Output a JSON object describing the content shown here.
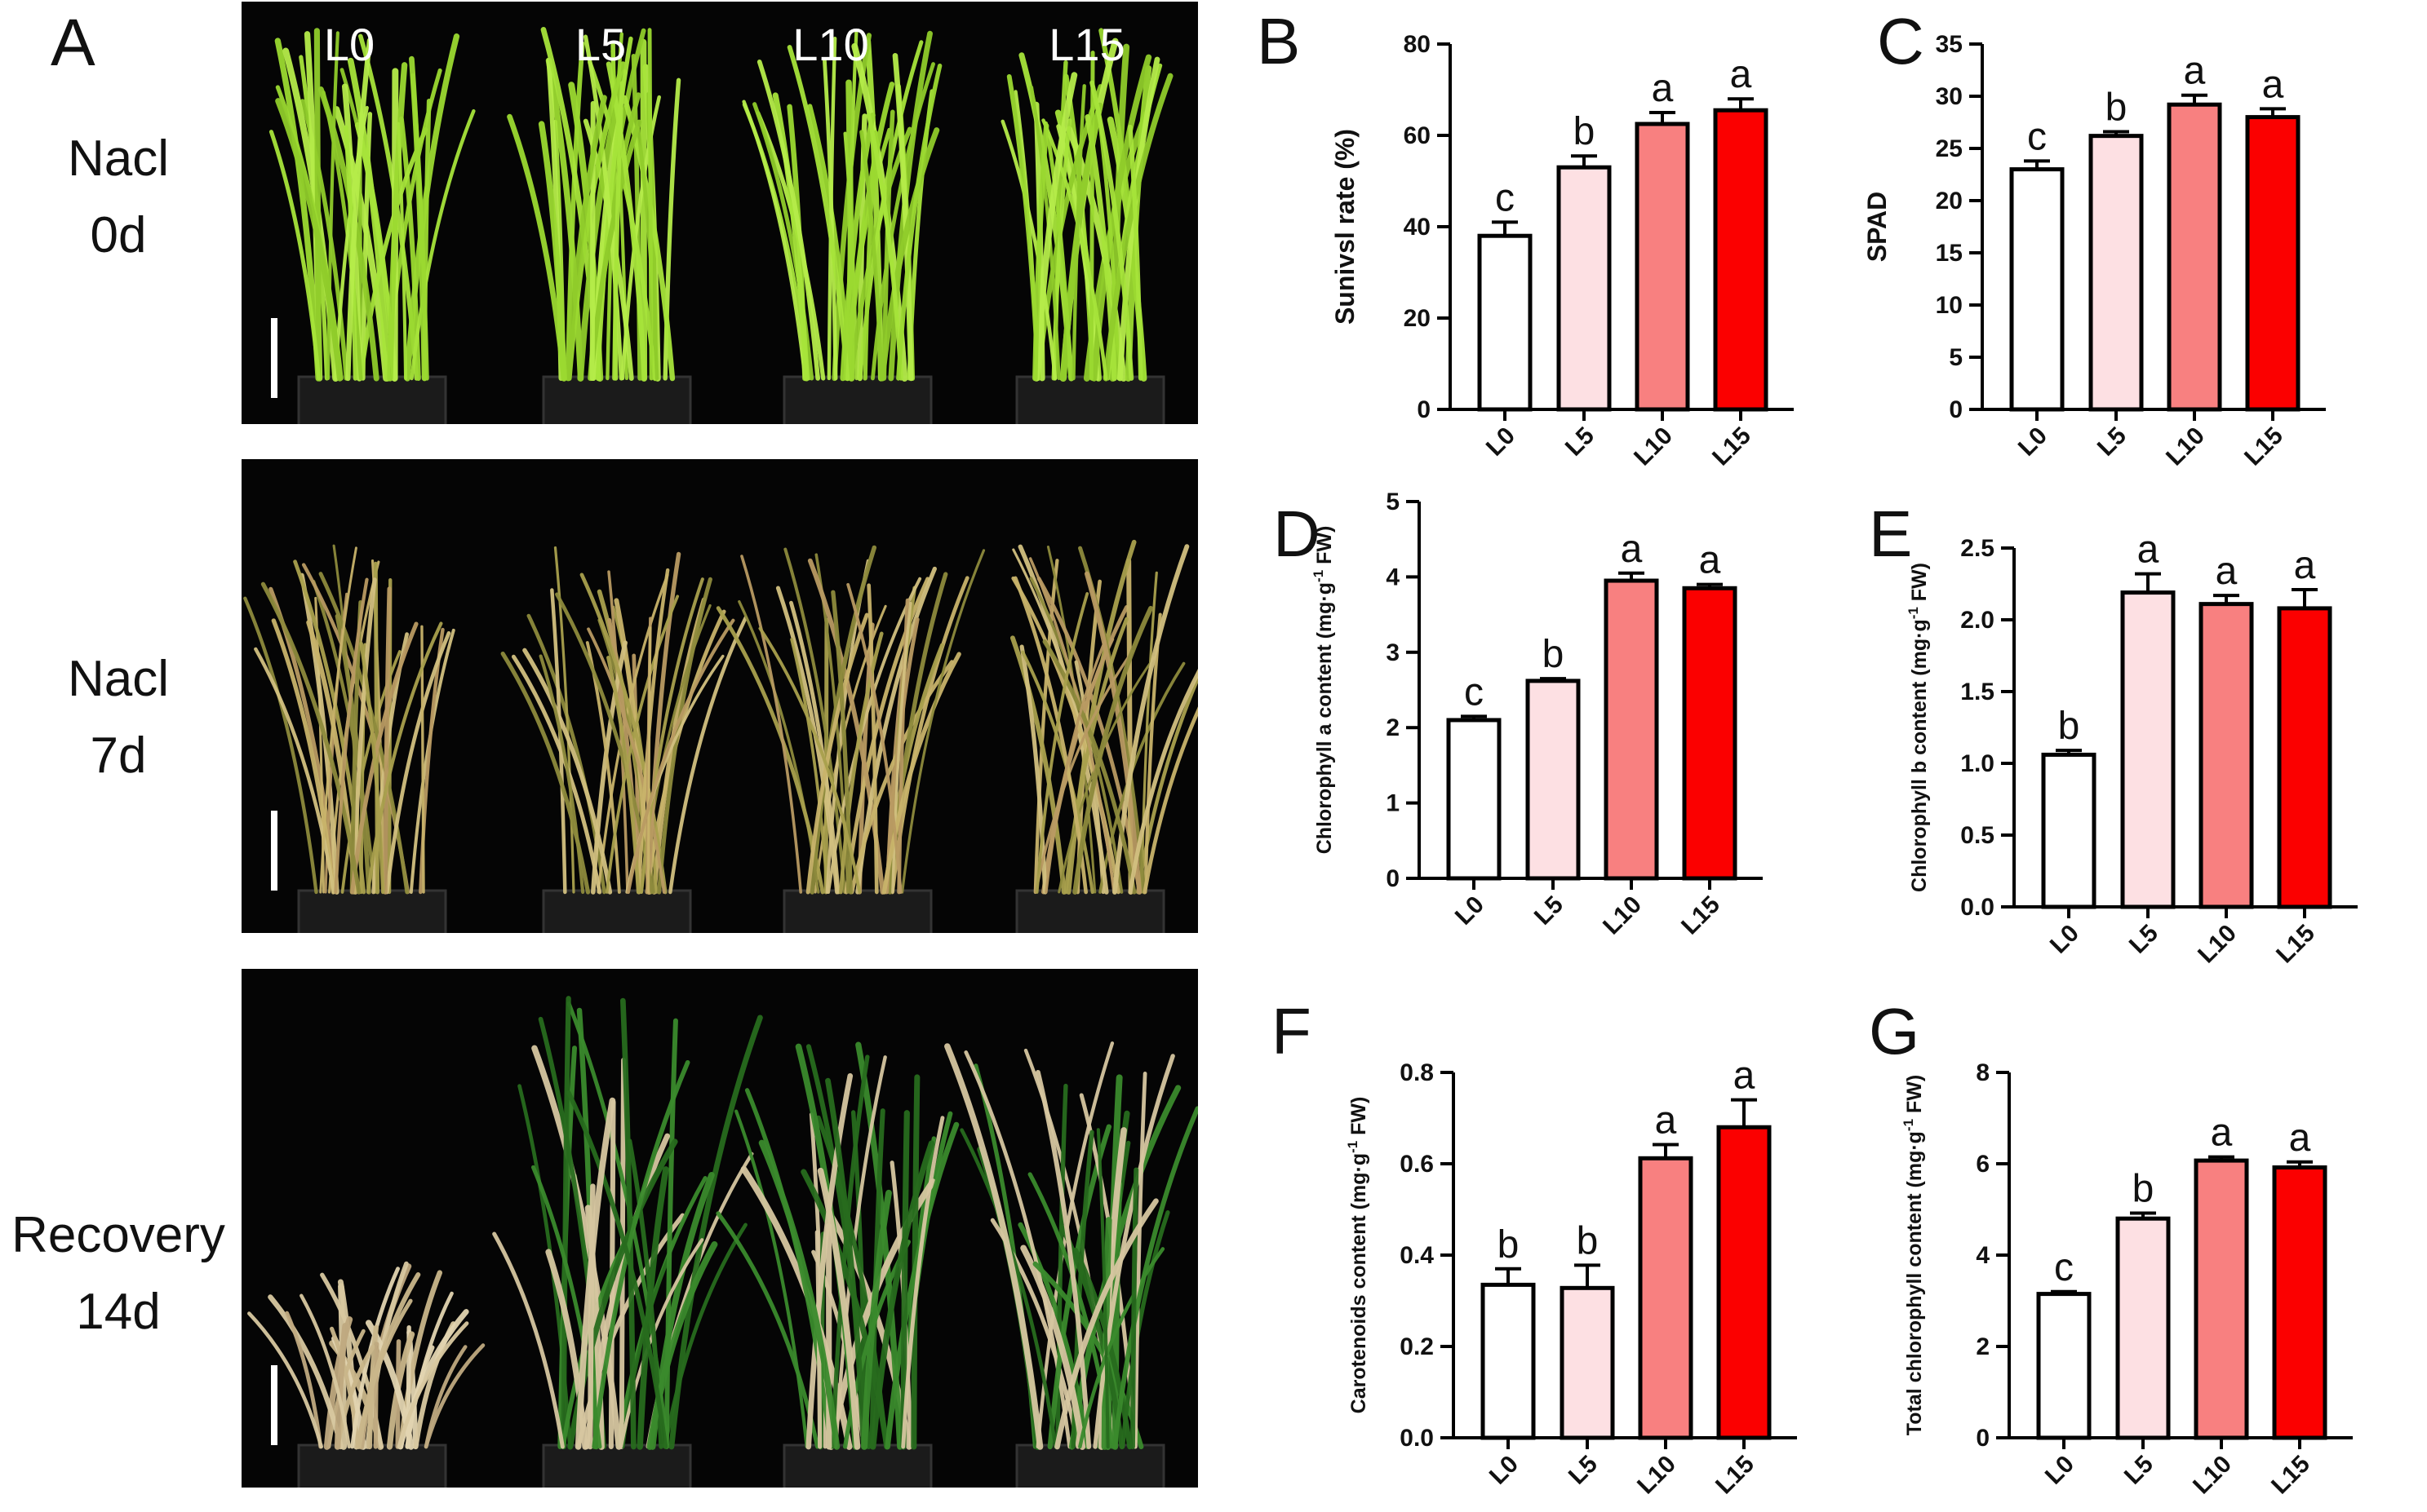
{
  "figure": {
    "panel_a": {
      "letter": "A",
      "column_labels": [
        "L0",
        "L5",
        "L10",
        "L15"
      ],
      "rows": [
        {
          "line1": "Nacl",
          "line2": "0d",
          "condition": "healthy"
        },
        {
          "line1": "Nacl",
          "line2": "7d",
          "condition": "stressed"
        },
        {
          "line1": "Recovery",
          "line2": "14d",
          "condition": "recovery"
        }
      ]
    }
  },
  "colors": {
    "L0": "#ffffff",
    "L5": "#fde0e3",
    "L10": "#f88080",
    "L15": "#fb0000",
    "outline": "#000000"
  },
  "chart_data": [
    {
      "id": "B",
      "letter": "B",
      "type": "bar",
      "categories": [
        "L0",
        "L5",
        "L10",
        "L15"
      ],
      "values": [
        38,
        53,
        62.5,
        65.5
      ],
      "errors": [
        3,
        2.5,
        2.5,
        2.5
      ],
      "significance": [
        "c",
        "b",
        "a",
        "a"
      ],
      "ylabel": "Sunivsl rate (%)",
      "ylim": [
        0,
        80
      ],
      "yticks": [
        0,
        20,
        40,
        60,
        80
      ],
      "ytick_labels": [
        "0",
        "20",
        "40",
        "60",
        "80"
      ]
    },
    {
      "id": "C",
      "letter": "C",
      "type": "bar",
      "categories": [
        "L0",
        "L5",
        "L10",
        "L15"
      ],
      "values": [
        23,
        26.2,
        29.2,
        28
      ],
      "errors": [
        0.8,
        0.4,
        0.9,
        0.8
      ],
      "significance": [
        "c",
        "b",
        "a",
        "a"
      ],
      "ylabel": "SPAD",
      "ylim": [
        0,
        35
      ],
      "yticks": [
        0,
        5,
        10,
        15,
        20,
        25,
        30,
        35
      ],
      "ytick_labels": [
        "0",
        "5",
        "10",
        "15",
        "20",
        "25",
        "30",
        "35"
      ]
    },
    {
      "id": "D",
      "letter": "D",
      "type": "bar",
      "categories": [
        "L0",
        "L5",
        "L10",
        "L15"
      ],
      "values": [
        2.1,
        2.62,
        3.95,
        3.85
      ],
      "errors": [
        0.05,
        0.03,
        0.1,
        0.05
      ],
      "significance": [
        "c",
        "b",
        "a",
        "a"
      ],
      "ylabel": "Chlorophyll a content (mg·g-1 FW)",
      "ylabel_parts": {
        "pre": "Chlorophyll a content (mg·g",
        "sup": "-1",
        "post": " FW)"
      },
      "ylim": [
        0,
        5
      ],
      "yticks": [
        0,
        1,
        2,
        3,
        4,
        5
      ],
      "ytick_labels": [
        "0",
        "1",
        "2",
        "3",
        "4",
        "5"
      ]
    },
    {
      "id": "E",
      "letter": "E",
      "type": "bar",
      "categories": [
        "L0",
        "L5",
        "L10",
        "L15"
      ],
      "values": [
        1.06,
        2.19,
        2.11,
        2.08
      ],
      "errors": [
        0.03,
        0.13,
        0.06,
        0.13
      ],
      "significance": [
        "b",
        "a",
        "a",
        "a"
      ],
      "ylabel": "Chlorophyll b content (mg·g-1 FW)",
      "ylabel_parts": {
        "pre": "Chlorophyll b content (mg·g",
        "sup": "-1",
        "post": " FW)"
      },
      "ylim": [
        0,
        2.5
      ],
      "yticks": [
        0,
        0.5,
        1.0,
        1.5,
        2.0,
        2.5
      ],
      "ytick_labels": [
        "0.0",
        "0.5",
        "1.0",
        "1.5",
        "2.0",
        "2.5"
      ]
    },
    {
      "id": "F",
      "letter": "F",
      "type": "bar",
      "categories": [
        "L0",
        "L5",
        "L10",
        "L15"
      ],
      "values": [
        0.335,
        0.328,
        0.612,
        0.68
      ],
      "errors": [
        0.035,
        0.05,
        0.03,
        0.06
      ],
      "significance": [
        "b",
        "b",
        "a",
        "a"
      ],
      "ylabel": "Carotenoids content (mg·g-1 FW)",
      "ylabel_parts": {
        "pre": "Carotenoids content (mg·g",
        "sup": "-1",
        "post": " FW)"
      },
      "ylim": [
        0,
        0.8
      ],
      "yticks": [
        0,
        0.2,
        0.4,
        0.6,
        0.8
      ],
      "ytick_labels": [
        "0.0",
        "0.2",
        "0.4",
        "0.6",
        "0.8"
      ]
    },
    {
      "id": "G",
      "letter": "G",
      "type": "bar",
      "categories": [
        "L0",
        "L5",
        "L10",
        "L15"
      ],
      "values": [
        3.15,
        4.8,
        6.07,
        5.92
      ],
      "errors": [
        0.05,
        0.12,
        0.08,
        0.12
      ],
      "significance": [
        "c",
        "b",
        "a",
        "a"
      ],
      "ylabel": "Total chlorophyll content (mg·g-1 FW)",
      "ylabel_parts": {
        "pre": "Total chlorophyll content (mg·g",
        "sup": "-1",
        "post": " FW)"
      },
      "ylim": [
        0,
        8
      ],
      "yticks": [
        0,
        2,
        4,
        6,
        8
      ],
      "ytick_labels": [
        "0",
        "2",
        "4",
        "6",
        "8"
      ]
    }
  ]
}
